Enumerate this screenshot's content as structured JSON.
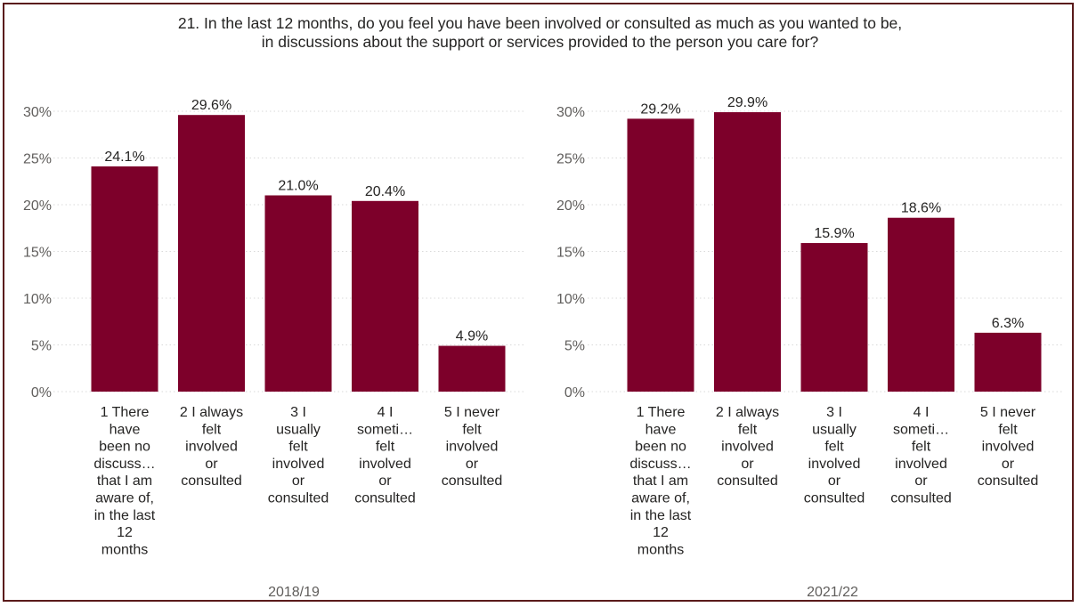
{
  "title_lines": [
    "21. In the last 12 months, do you feel you have been involved or consulted as much as you wanted to be,",
    "in discussions about the support or services provided to the person you care for?"
  ],
  "colors": {
    "bar": "#7d002a",
    "text": "#252423",
    "axis_text": "#605e5c",
    "grid": "#d9d9d9",
    "border": "#5a1a1a"
  },
  "chart_data": [
    {
      "type": "bar",
      "xlabel": "2018/19",
      "ylabel": "",
      "ylim": [
        0,
        30
      ],
      "ytick_labels": [
        "0%",
        "5%",
        "10%",
        "15%",
        "20%",
        "25%",
        "30%"
      ],
      "grid": true,
      "categories": [
        [
          "1 There",
          "have",
          "been no",
          "discuss…",
          "that I am",
          "aware of,",
          "in the last",
          "12",
          "months"
        ],
        [
          "2 I always",
          "felt",
          "involved",
          "or",
          "consulted"
        ],
        [
          "3 I",
          "usually",
          "felt",
          "involved",
          "or",
          "consulted"
        ],
        [
          "4 I",
          "someti…",
          "felt",
          "involved",
          "or",
          "consulted"
        ],
        [
          "5 I never",
          "felt",
          "involved",
          "or",
          "consulted"
        ]
      ],
      "values": [
        24.1,
        29.6,
        21.0,
        20.4,
        4.9
      ],
      "data_labels": [
        "24.1%",
        "29.6%",
        "21.0%",
        "20.4%",
        "4.9%"
      ]
    },
    {
      "type": "bar",
      "xlabel": "2021/22",
      "ylabel": "",
      "ylim": [
        0,
        30
      ],
      "ytick_labels": [
        "0%",
        "5%",
        "10%",
        "15%",
        "20%",
        "25%",
        "30%"
      ],
      "grid": true,
      "categories": [
        [
          "1 There",
          "have",
          "been no",
          "discuss…",
          "that I am",
          "aware of,",
          "in the last",
          "12",
          "months"
        ],
        [
          "2 I always",
          "felt",
          "involved",
          "or",
          "consulted"
        ],
        [
          "3 I",
          "usually",
          "felt",
          "involved",
          "or",
          "consulted"
        ],
        [
          "4 I",
          "someti…",
          "felt",
          "involved",
          "or",
          "consulted"
        ],
        [
          "5 I never",
          "felt",
          "involved",
          "or",
          "consulted"
        ]
      ],
      "values": [
        29.2,
        29.9,
        15.9,
        18.6,
        6.3
      ],
      "data_labels": [
        "29.2%",
        "29.9%",
        "15.9%",
        "18.6%",
        "6.3%"
      ]
    }
  ]
}
